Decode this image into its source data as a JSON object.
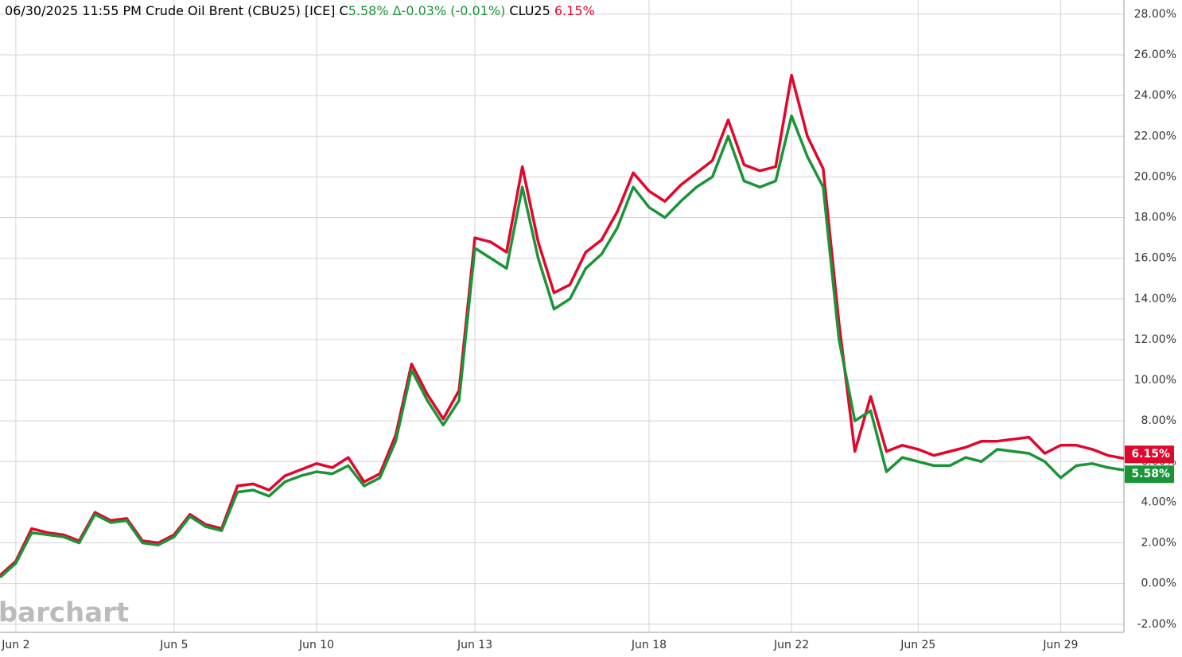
{
  "chart_data": {
    "type": "line",
    "header": {
      "date_time": "06/30/2025  11:55 PM",
      "symbol": "Crude Oil Brent (CBU25) [ICE]",
      "c_label": "C",
      "c_value": "5.58%",
      "change": "Δ-0.03% (-0.01%)",
      "other_symbol": "CLU25",
      "other_value": "6.15%"
    },
    "watermark": "barchart",
    "categories": [
      null,
      "Jun 2",
      null,
      null,
      null,
      null,
      null,
      null,
      null,
      null,
      null,
      "Jun 5",
      null,
      null,
      null,
      null,
      null,
      null,
      null,
      null,
      "Jun 10",
      null,
      null,
      null,
      null,
      null,
      null,
      null,
      null,
      null,
      "Jun 13",
      null,
      null,
      null,
      null,
      null,
      null,
      null,
      null,
      null,
      null,
      "Jun 18",
      null,
      null,
      null,
      null,
      null,
      null,
      null,
      null,
      "Jun 22",
      null,
      null,
      null,
      null,
      null,
      null,
      null,
      "Jun 25",
      null,
      null,
      null,
      null,
      null,
      null,
      null,
      null,
      "Jun 29",
      null,
      null,
      null,
      null
    ],
    "series": [
      {
        "name": "CLU25",
        "color": "#e2062c",
        "values": [
          0.4,
          1.1,
          2.7,
          2.5,
          2.4,
          2.1,
          3.5,
          3.1,
          3.2,
          2.1,
          2.0,
          2.4,
          3.4,
          2.9,
          2.7,
          4.8,
          4.9,
          4.6,
          5.3,
          5.6,
          5.9,
          5.7,
          6.2,
          5.0,
          5.4,
          7.3,
          10.8,
          9.3,
          8.1,
          9.5,
          17.0,
          16.8,
          16.3,
          20.5,
          16.8,
          14.3,
          14.7,
          16.3,
          16.9,
          18.3,
          20.2,
          19.3,
          18.8,
          19.6,
          20.2,
          20.8,
          22.8,
          20.6,
          20.3,
          20.5,
          25.0,
          22.0,
          20.4,
          12.8,
          6.5,
          9.2,
          6.5,
          6.8,
          6.6,
          6.3,
          6.5,
          6.7,
          7.0,
          7.0,
          7.1,
          7.2,
          6.4,
          6.8,
          6.8,
          6.6,
          6.3,
          6.15
        ],
        "value_labels": [
          null,
          null,
          null,
          null,
          null,
          null,
          null,
          null,
          null,
          null,
          null,
          null,
          null,
          null,
          null,
          null,
          null,
          null,
          null,
          null,
          null,
          null,
          null,
          null,
          null,
          null,
          null,
          null,
          null,
          null,
          null,
          null,
          null,
          null,
          null,
          null,
          null,
          null,
          null,
          null,
          null,
          null,
          null,
          null,
          null,
          null,
          null,
          null,
          null,
          null,
          null,
          null,
          null,
          null,
          null,
          null,
          null,
          null,
          null,
          null,
          null,
          null,
          null,
          null,
          null,
          null,
          null,
          null,
          null,
          null,
          null,
          "6.15%"
        ]
      },
      {
        "name": "CBU25",
        "color": "#1b9438",
        "values": [
          0.3,
          1.0,
          2.5,
          2.4,
          2.3,
          2.0,
          3.4,
          3.0,
          3.1,
          2.0,
          1.9,
          2.3,
          3.3,
          2.8,
          2.6,
          4.5,
          4.6,
          4.3,
          5.0,
          5.3,
          5.5,
          5.4,
          5.8,
          4.8,
          5.2,
          7.0,
          10.5,
          9.0,
          7.8,
          9.0,
          16.5,
          16.0,
          15.5,
          19.5,
          16.0,
          13.5,
          14.0,
          15.5,
          16.2,
          17.5,
          19.5,
          18.5,
          18.0,
          18.8,
          19.5,
          20.0,
          22.0,
          19.8,
          19.5,
          19.8,
          23.0,
          21.0,
          19.5,
          12.0,
          8.0,
          8.5,
          5.5,
          6.2,
          6.0,
          5.8,
          5.8,
          6.2,
          6.0,
          6.6,
          6.5,
          6.4,
          6.0,
          5.2,
          5.8,
          5.9,
          5.7,
          5.58
        ],
        "value_labels": [
          null,
          null,
          null,
          null,
          null,
          null,
          null,
          null,
          null,
          null,
          null,
          null,
          null,
          null,
          null,
          null,
          null,
          null,
          null,
          null,
          null,
          null,
          null,
          null,
          null,
          null,
          null,
          null,
          null,
          null,
          null,
          null,
          null,
          null,
          null,
          null,
          null,
          null,
          null,
          null,
          null,
          null,
          null,
          null,
          null,
          null,
          null,
          null,
          null,
          null,
          null,
          null,
          null,
          null,
          null,
          null,
          null,
          null,
          null,
          null,
          null,
          null,
          null,
          null,
          null,
          null,
          null,
          null,
          null,
          null,
          null,
          "5.58%"
        ]
      }
    ],
    "ylim": [
      -2.4,
      28.7
    ],
    "yticks": [
      {
        "value": 28,
        "label": "28.00%"
      },
      {
        "value": 26,
        "label": "26.00%"
      },
      {
        "value": 24,
        "label": "24.00%"
      },
      {
        "value": 22,
        "label": "22.00%"
      },
      {
        "value": 20,
        "label": "20.00%"
      },
      {
        "value": 18,
        "label": "18.00%"
      },
      {
        "value": 16,
        "label": "16.00%"
      },
      {
        "value": 14,
        "label": "14.00%"
      },
      {
        "value": 12,
        "label": "12.00%"
      },
      {
        "value": 10,
        "label": "10.00%"
      },
      {
        "value": 8,
        "label": "8.00%"
      },
      {
        "value": 6,
        "label": "6.00%"
      },
      {
        "value": 4,
        "label": "4.00%"
      },
      {
        "value": 2,
        "label": "2.00%"
      },
      {
        "value": 0,
        "label": "0.00%"
      },
      {
        "value": -2,
        "label": "-2.00%"
      }
    ],
    "grid": true
  }
}
